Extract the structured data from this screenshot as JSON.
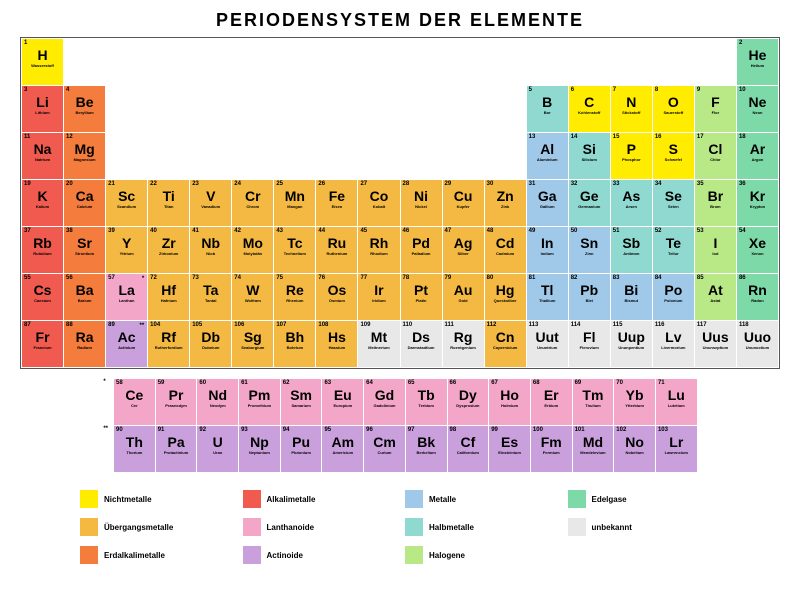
{
  "title": "PERIODENSYSTEM DER ELEMENTE",
  "colors": {
    "nichtmetalle": "#ffec00",
    "uebergangsmetalle": "#f4b942",
    "erdalkalimetalle": "#f47c3c",
    "alkalimetalle": "#f05a4f",
    "lanthanoide": "#f4a6c8",
    "actinoide": "#c9a0dc",
    "metalle": "#a0c8e8",
    "halbmetalle": "#8fd9d0",
    "halogene": "#b8e986",
    "edelgase": "#7dd9a8",
    "unbekannt": "#e8e8e8"
  },
  "legend": [
    {
      "key": "nichtmetalle",
      "label": "Nichtmetalle"
    },
    {
      "key": "alkalimetalle",
      "label": "Alkalimetalle"
    },
    {
      "key": "metalle",
      "label": "Metalle"
    },
    {
      "key": "edelgase",
      "label": "Edelgase"
    },
    {
      "key": "uebergangsmetalle",
      "label": "Übergangsmetalle"
    },
    {
      "key": "lanthanoide",
      "label": "Lanthanoide"
    },
    {
      "key": "halbmetalle",
      "label": "Halbmetalle"
    },
    {
      "key": "unbekannt",
      "label": "unbekannt"
    },
    {
      "key": "erdalkalimetalle",
      "label": "Erdalkalimetalle"
    },
    {
      "key": "actinoide",
      "label": "Actinoide"
    },
    {
      "key": "halogene",
      "label": "Halogene"
    }
  ],
  "main": [
    {
      "n": 1,
      "s": "H",
      "nm": "Wasserstoff",
      "c": "nichtmetalle",
      "r": 1,
      "col": 1
    },
    {
      "n": 2,
      "s": "He",
      "nm": "Helium",
      "c": "edelgase",
      "r": 1,
      "col": 18
    },
    {
      "n": 3,
      "s": "Li",
      "nm": "Lithium",
      "c": "alkalimetalle",
      "r": 2,
      "col": 1
    },
    {
      "n": 4,
      "s": "Be",
      "nm": "Beryllium",
      "c": "erdalkalimetalle",
      "r": 2,
      "col": 2
    },
    {
      "n": 5,
      "s": "B",
      "nm": "Bor",
      "c": "halbmetalle",
      "r": 2,
      "col": 13
    },
    {
      "n": 6,
      "s": "C",
      "nm": "Kohlenstoff",
      "c": "nichtmetalle",
      "r": 2,
      "col": 14
    },
    {
      "n": 7,
      "s": "N",
      "nm": "Stickstoff",
      "c": "nichtmetalle",
      "r": 2,
      "col": 15
    },
    {
      "n": 8,
      "s": "O",
      "nm": "Sauerstoff",
      "c": "nichtmetalle",
      "r": 2,
      "col": 16
    },
    {
      "n": 9,
      "s": "F",
      "nm": "Flor",
      "c": "halogene",
      "r": 2,
      "col": 17
    },
    {
      "n": 10,
      "s": "Ne",
      "nm": "Neon",
      "c": "edelgase",
      "r": 2,
      "col": 18
    },
    {
      "n": 11,
      "s": "Na",
      "nm": "Natrium",
      "c": "alkalimetalle",
      "r": 3,
      "col": 1
    },
    {
      "n": 12,
      "s": "Mg",
      "nm": "Magnesium",
      "c": "erdalkalimetalle",
      "r": 3,
      "col": 2
    },
    {
      "n": 13,
      "s": "Al",
      "nm": "Aluminium",
      "c": "metalle",
      "r": 3,
      "col": 13
    },
    {
      "n": 14,
      "s": "Si",
      "nm": "Silicium",
      "c": "halbmetalle",
      "r": 3,
      "col": 14
    },
    {
      "n": 15,
      "s": "P",
      "nm": "Phosphor",
      "c": "nichtmetalle",
      "r": 3,
      "col": 15
    },
    {
      "n": 16,
      "s": "S",
      "nm": "Schwefel",
      "c": "nichtmetalle",
      "r": 3,
      "col": 16
    },
    {
      "n": 17,
      "s": "Cl",
      "nm": "Chlor",
      "c": "halogene",
      "r": 3,
      "col": 17
    },
    {
      "n": 18,
      "s": "Ar",
      "nm": "Argon",
      "c": "edelgase",
      "r": 3,
      "col": 18
    },
    {
      "n": 19,
      "s": "K",
      "nm": "Kalium",
      "c": "alkalimetalle",
      "r": 4,
      "col": 1
    },
    {
      "n": 20,
      "s": "Ca",
      "nm": "Calcium",
      "c": "erdalkalimetalle",
      "r": 4,
      "col": 2
    },
    {
      "n": 21,
      "s": "Sc",
      "nm": "Scandium",
      "c": "uebergangsmetalle",
      "r": 4,
      "col": 3
    },
    {
      "n": 22,
      "s": "Ti",
      "nm": "Titan",
      "c": "uebergangsmetalle",
      "r": 4,
      "col": 4
    },
    {
      "n": 23,
      "s": "V",
      "nm": "Vanadium",
      "c": "uebergangsmetalle",
      "r": 4,
      "col": 5
    },
    {
      "n": 24,
      "s": "Cr",
      "nm": "Chrom",
      "c": "uebergangsmetalle",
      "r": 4,
      "col": 6
    },
    {
      "n": 25,
      "s": "Mn",
      "nm": "Mangan",
      "c": "uebergangsmetalle",
      "r": 4,
      "col": 7
    },
    {
      "n": 26,
      "s": "Fe",
      "nm": "Eisen",
      "c": "uebergangsmetalle",
      "r": 4,
      "col": 8
    },
    {
      "n": 27,
      "s": "Co",
      "nm": "Kobalt",
      "c": "uebergangsmetalle",
      "r": 4,
      "col": 9
    },
    {
      "n": 28,
      "s": "Ni",
      "nm": "Nickel",
      "c": "uebergangsmetalle",
      "r": 4,
      "col": 10
    },
    {
      "n": 29,
      "s": "Cu",
      "nm": "Kupfer",
      "c": "uebergangsmetalle",
      "r": 4,
      "col": 11
    },
    {
      "n": 30,
      "s": "Zn",
      "nm": "Zink",
      "c": "uebergangsmetalle",
      "r": 4,
      "col": 12
    },
    {
      "n": 31,
      "s": "Ga",
      "nm": "Gallium",
      "c": "metalle",
      "r": 4,
      "col": 13
    },
    {
      "n": 32,
      "s": "Ge",
      "nm": "Germanium",
      "c": "halbmetalle",
      "r": 4,
      "col": 14
    },
    {
      "n": 33,
      "s": "As",
      "nm": "Arsen",
      "c": "halbmetalle",
      "r": 4,
      "col": 15
    },
    {
      "n": 34,
      "s": "Se",
      "nm": "Selen",
      "c": "halbmetalle",
      "r": 4,
      "col": 16
    },
    {
      "n": 35,
      "s": "Br",
      "nm": "Brom",
      "c": "halogene",
      "r": 4,
      "col": 17
    },
    {
      "n": 36,
      "s": "Kr",
      "nm": "Krypton",
      "c": "edelgase",
      "r": 4,
      "col": 18
    },
    {
      "n": 37,
      "s": "Rb",
      "nm": "Rubidium",
      "c": "alkalimetalle",
      "r": 5,
      "col": 1
    },
    {
      "n": 38,
      "s": "Sr",
      "nm": "Strontium",
      "c": "erdalkalimetalle",
      "r": 5,
      "col": 2
    },
    {
      "n": 39,
      "s": "Y",
      "nm": "Yttrium",
      "c": "uebergangsmetalle",
      "r": 5,
      "col": 3
    },
    {
      "n": 40,
      "s": "Zr",
      "nm": "Zirkonium",
      "c": "uebergangsmetalle",
      "r": 5,
      "col": 4
    },
    {
      "n": 41,
      "s": "Nb",
      "nm": "Niob",
      "c": "uebergangsmetalle",
      "r": 5,
      "col": 5
    },
    {
      "n": 42,
      "s": "Mo",
      "nm": "Molybdän",
      "c": "uebergangsmetalle",
      "r": 5,
      "col": 6
    },
    {
      "n": 43,
      "s": "Tc",
      "nm": "Technetium",
      "c": "uebergangsmetalle",
      "r": 5,
      "col": 7
    },
    {
      "n": 44,
      "s": "Ru",
      "nm": "Ruthenium",
      "c": "uebergangsmetalle",
      "r": 5,
      "col": 8
    },
    {
      "n": 45,
      "s": "Rh",
      "nm": "Rhodium",
      "c": "uebergangsmetalle",
      "r": 5,
      "col": 9
    },
    {
      "n": 46,
      "s": "Pd",
      "nm": "Palladium",
      "c": "uebergangsmetalle",
      "r": 5,
      "col": 10
    },
    {
      "n": 47,
      "s": "Ag",
      "nm": "Silber",
      "c": "uebergangsmetalle",
      "r": 5,
      "col": 11
    },
    {
      "n": 48,
      "s": "Cd",
      "nm": "Cadmium",
      "c": "uebergangsmetalle",
      "r": 5,
      "col": 12
    },
    {
      "n": 49,
      "s": "In",
      "nm": "Indium",
      "c": "metalle",
      "r": 5,
      "col": 13
    },
    {
      "n": 50,
      "s": "Sn",
      "nm": "Zinn",
      "c": "metalle",
      "r": 5,
      "col": 14
    },
    {
      "n": 51,
      "s": "Sb",
      "nm": "Antimon",
      "c": "halbmetalle",
      "r": 5,
      "col": 15
    },
    {
      "n": 52,
      "s": "Te",
      "nm": "Tellur",
      "c": "halbmetalle",
      "r": 5,
      "col": 16
    },
    {
      "n": 53,
      "s": "I",
      "nm": "Iod",
      "c": "halogene",
      "r": 5,
      "col": 17
    },
    {
      "n": 54,
      "s": "Xe",
      "nm": "Xenon",
      "c": "edelgase",
      "r": 5,
      "col": 18
    },
    {
      "n": 55,
      "s": "Cs",
      "nm": "Caesium",
      "c": "alkalimetalle",
      "r": 6,
      "col": 1
    },
    {
      "n": 56,
      "s": "Ba",
      "nm": "Barium",
      "c": "erdalkalimetalle",
      "r": 6,
      "col": 2
    },
    {
      "n": 57,
      "s": "La",
      "nm": "Lanthan",
      "c": "lanthanoide",
      "r": 6,
      "col": 3,
      "mark": "*"
    },
    {
      "n": 72,
      "s": "Hf",
      "nm": "Hafnium",
      "c": "uebergangsmetalle",
      "r": 6,
      "col": 4
    },
    {
      "n": 73,
      "s": "Ta",
      "nm": "Tantal",
      "c": "uebergangsmetalle",
      "r": 6,
      "col": 5
    },
    {
      "n": 74,
      "s": "W",
      "nm": "Wolfram",
      "c": "uebergangsmetalle",
      "r": 6,
      "col": 6
    },
    {
      "n": 75,
      "s": "Re",
      "nm": "Rhenium",
      "c": "uebergangsmetalle",
      "r": 6,
      "col": 7
    },
    {
      "n": 76,
      "s": "Os",
      "nm": "Osmium",
      "c": "uebergangsmetalle",
      "r": 6,
      "col": 8
    },
    {
      "n": 77,
      "s": "Ir",
      "nm": "Iridium",
      "c": "uebergangsmetalle",
      "r": 6,
      "col": 9
    },
    {
      "n": 78,
      "s": "Pt",
      "nm": "Platin",
      "c": "uebergangsmetalle",
      "r": 6,
      "col": 10
    },
    {
      "n": 79,
      "s": "Au",
      "nm": "Gold",
      "c": "uebergangsmetalle",
      "r": 6,
      "col": 11
    },
    {
      "n": 80,
      "s": "Hg",
      "nm": "Quecksilber",
      "c": "uebergangsmetalle",
      "r": 6,
      "col": 12
    },
    {
      "n": 81,
      "s": "Tl",
      "nm": "Thallium",
      "c": "metalle",
      "r": 6,
      "col": 13
    },
    {
      "n": 82,
      "s": "Pb",
      "nm": "Blei",
      "c": "metalle",
      "r": 6,
      "col": 14
    },
    {
      "n": 83,
      "s": "Bi",
      "nm": "Bismut",
      "c": "metalle",
      "r": 6,
      "col": 15
    },
    {
      "n": 84,
      "s": "Po",
      "nm": "Polonium",
      "c": "metalle",
      "r": 6,
      "col": 16
    },
    {
      "n": 85,
      "s": "At",
      "nm": "Astat",
      "c": "halogene",
      "r": 6,
      "col": 17
    },
    {
      "n": 86,
      "s": "Rn",
      "nm": "Radon",
      "c": "edelgase",
      "r": 6,
      "col": 18
    },
    {
      "n": 87,
      "s": "Fr",
      "nm": "Francium",
      "c": "alkalimetalle",
      "r": 7,
      "col": 1
    },
    {
      "n": 88,
      "s": "Ra",
      "nm": "Radium",
      "c": "erdalkalimetalle",
      "r": 7,
      "col": 2
    },
    {
      "n": 89,
      "s": "Ac",
      "nm": "Actinium",
      "c": "actinoide",
      "r": 7,
      "col": 3,
      "mark": "**"
    },
    {
      "n": 104,
      "s": "Rf",
      "nm": "Rutherfordium",
      "c": "uebergangsmetalle",
      "r": 7,
      "col": 4
    },
    {
      "n": 105,
      "s": "Db",
      "nm": "Dubnium",
      "c": "uebergangsmetalle",
      "r": 7,
      "col": 5
    },
    {
      "n": 106,
      "s": "Sg",
      "nm": "Seaborgium",
      "c": "uebergangsmetalle",
      "r": 7,
      "col": 6
    },
    {
      "n": 107,
      "s": "Bh",
      "nm": "Bohrium",
      "c": "uebergangsmetalle",
      "r": 7,
      "col": 7
    },
    {
      "n": 108,
      "s": "Hs",
      "nm": "Hassium",
      "c": "uebergangsmetalle",
      "r": 7,
      "col": 8
    },
    {
      "n": 109,
      "s": "Mt",
      "nm": "Meitnerium",
      "c": "unbekannt",
      "r": 7,
      "col": 9
    },
    {
      "n": 110,
      "s": "Ds",
      "nm": "Darmstadtium",
      "c": "unbekannt",
      "r": 7,
      "col": 10
    },
    {
      "n": 111,
      "s": "Rg",
      "nm": "Roentgenium",
      "c": "unbekannt",
      "r": 7,
      "col": 11
    },
    {
      "n": 112,
      "s": "Cn",
      "nm": "Copernicium",
      "c": "uebergangsmetalle",
      "r": 7,
      "col": 12
    },
    {
      "n": 113,
      "s": "Uut",
      "nm": "Ununtrium",
      "c": "unbekannt",
      "r": 7,
      "col": 13
    },
    {
      "n": 114,
      "s": "Fl",
      "nm": "Flerovium",
      "c": "unbekannt",
      "r": 7,
      "col": 14
    },
    {
      "n": 115,
      "s": "Uup",
      "nm": "Ununpentium",
      "c": "unbekannt",
      "r": 7,
      "col": 15
    },
    {
      "n": 116,
      "s": "Lv",
      "nm": "Livermorium",
      "c": "unbekannt",
      "r": 7,
      "col": 16
    },
    {
      "n": 117,
      "s": "Uus",
      "nm": "Ununseptium",
      "c": "unbekannt",
      "r": 7,
      "col": 17
    },
    {
      "n": 118,
      "s": "Uuo",
      "nm": "Ununoctium",
      "c": "unbekannt",
      "r": 7,
      "col": 18
    }
  ],
  "fblock": [
    {
      "n": 58,
      "s": "Ce",
      "nm": "Cer",
      "c": "lanthanoide",
      "r": 1,
      "col": 1
    },
    {
      "n": 59,
      "s": "Pr",
      "nm": "Praseodym",
      "c": "lanthanoide",
      "r": 1,
      "col": 2
    },
    {
      "n": 60,
      "s": "Nd",
      "nm": "Neodym",
      "c": "lanthanoide",
      "r": 1,
      "col": 3
    },
    {
      "n": 61,
      "s": "Pm",
      "nm": "Promethium",
      "c": "lanthanoide",
      "r": 1,
      "col": 4
    },
    {
      "n": 62,
      "s": "Sm",
      "nm": "Samarium",
      "c": "lanthanoide",
      "r": 1,
      "col": 5
    },
    {
      "n": 63,
      "s": "Eu",
      "nm": "Europium",
      "c": "lanthanoide",
      "r": 1,
      "col": 6
    },
    {
      "n": 64,
      "s": "Gd",
      "nm": "Gadolinium",
      "c": "lanthanoide",
      "r": 1,
      "col": 7
    },
    {
      "n": 65,
      "s": "Tb",
      "nm": "Terbium",
      "c": "lanthanoide",
      "r": 1,
      "col": 8
    },
    {
      "n": 66,
      "s": "Dy",
      "nm": "Dysprosium",
      "c": "lanthanoide",
      "r": 1,
      "col": 9
    },
    {
      "n": 67,
      "s": "Ho",
      "nm": "Holmium",
      "c": "lanthanoide",
      "r": 1,
      "col": 10
    },
    {
      "n": 68,
      "s": "Er",
      "nm": "Erbium",
      "c": "lanthanoide",
      "r": 1,
      "col": 11
    },
    {
      "n": 69,
      "s": "Tm",
      "nm": "Thulium",
      "c": "lanthanoide",
      "r": 1,
      "col": 12
    },
    {
      "n": 70,
      "s": "Yb",
      "nm": "Ytterbium",
      "c": "lanthanoide",
      "r": 1,
      "col": 13
    },
    {
      "n": 71,
      "s": "Lu",
      "nm": "Lutetium",
      "c": "lanthanoide",
      "r": 1,
      "col": 14
    },
    {
      "n": 90,
      "s": "Th",
      "nm": "Thorium",
      "c": "actinoide",
      "r": 2,
      "col": 1
    },
    {
      "n": 91,
      "s": "Pa",
      "nm": "Protactinium",
      "c": "actinoide",
      "r": 2,
      "col": 2
    },
    {
      "n": 92,
      "s": "U",
      "nm": "Uran",
      "c": "actinoide",
      "r": 2,
      "col": 3
    },
    {
      "n": 93,
      "s": "Np",
      "nm": "Neptunium",
      "c": "actinoide",
      "r": 2,
      "col": 4
    },
    {
      "n": 94,
      "s": "Pu",
      "nm": "Plutonium",
      "c": "actinoide",
      "r": 2,
      "col": 5
    },
    {
      "n": 95,
      "s": "Am",
      "nm": "Americium",
      "c": "actinoide",
      "r": 2,
      "col": 6
    },
    {
      "n": 96,
      "s": "Cm",
      "nm": "Curium",
      "c": "actinoide",
      "r": 2,
      "col": 7
    },
    {
      "n": 97,
      "s": "Bk",
      "nm": "Berkelium",
      "c": "actinoide",
      "r": 2,
      "col": 8
    },
    {
      "n": 98,
      "s": "Cf",
      "nm": "Californium",
      "c": "actinoide",
      "r": 2,
      "col": 9
    },
    {
      "n": 99,
      "s": "Es",
      "nm": "Einsteinium",
      "c": "actinoide",
      "r": 2,
      "col": 10
    },
    {
      "n": 100,
      "s": "Fm",
      "nm": "Fermium",
      "c": "actinoide",
      "r": 2,
      "col": 11
    },
    {
      "n": 101,
      "s": "Md",
      "nm": "Mendelevium",
      "c": "actinoide",
      "r": 2,
      "col": 12
    },
    {
      "n": 102,
      "s": "No",
      "nm": "Nobelium",
      "c": "actinoide",
      "r": 2,
      "col": 13
    },
    {
      "n": 103,
      "s": "Lr",
      "nm": "Lawrencium",
      "c": "actinoide",
      "r": 2,
      "col": 14
    }
  ],
  "fblock_labels": [
    "*",
    "**"
  ]
}
